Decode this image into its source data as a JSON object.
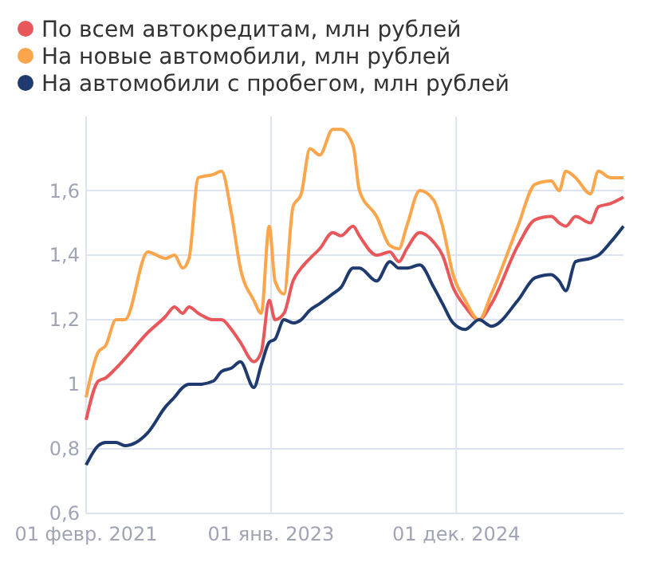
{
  "chart_data": {
    "type": "line",
    "legend": "top left",
    "grid": true,
    "marker": "none",
    "line_style": "solid",
    "x": [
      "2021-02-01",
      "2021-03-19",
      "2021-04-16",
      "2021-05-25",
      "2021-06-28",
      "2021-09-22",
      "2021-11-28",
      "2022-01-01",
      "2022-02-01",
      "2022-02-25",
      "2022-04-01",
      "2022-05-28",
      "2022-06-28",
      "2022-08-04",
      "2022-09-07",
      "2022-10-28",
      "2022-11-25",
      "2022-12-25",
      "2023-01-16",
      "2023-02-19",
      "2023-03-25",
      "2023-04-25",
      "2023-05-28",
      "2023-07-04",
      "2023-08-22",
      "2023-09-22",
      "2023-11-07",
      "2023-12-01",
      "2024-02-04",
      "2024-03-25",
      "2024-04-28",
      "2024-05-28",
      "2024-07-16",
      "2024-09-07",
      "2024-10-10",
      "2024-11-19",
      "2025-01-04",
      "2025-02-25",
      "2025-04-13",
      "2025-07-22",
      "2025-09-25",
      "2025-11-25",
      "2025-12-25",
      "2026-01-19",
      "2026-02-25",
      "2026-04-22",
      "2026-05-22",
      "2026-07-07",
      "2026-08-25"
    ],
    "xlim": [
      "2021-02-01",
      "2026-08-25"
    ],
    "xticks": [
      {
        "value": "2021-02-01",
        "label": "01 февр. 2021"
      },
      {
        "value": "2023-01-01",
        "label": "01 янв. 2023"
      },
      {
        "value": "2024-12-01",
        "label": "01 дек. 2024"
      }
    ],
    "ylim": [
      0.6,
      1.83
    ],
    "yticks": [
      {
        "value": 0.6,
        "label": "0,6"
      },
      {
        "value": 0.8,
        "label": "0,8"
      },
      {
        "value": 1,
        "label": "1"
      },
      {
        "value": 1.2,
        "label": "1,2"
      },
      {
        "value": 1.4,
        "label": "1,4"
      },
      {
        "value": 1.6,
        "label": "1,6"
      }
    ],
    "series": [
      {
        "name": "По всем автокредитам, млн рублей",
        "color": "#e8575a",
        "values": [
          0.89,
          1.01,
          1.02,
          1.05,
          1.08,
          1.16,
          1.21,
          1.24,
          1.22,
          1.24,
          1.22,
          1.2,
          1.2,
          1.17,
          1.13,
          1.07,
          1.1,
          1.26,
          1.2,
          1.22,
          1.32,
          1.36,
          1.39,
          1.42,
          1.47,
          1.46,
          1.49,
          1.46,
          1.4,
          1.41,
          1.38,
          1.42,
          1.47,
          1.44,
          1.4,
          1.3,
          1.24,
          1.2,
          1.25,
          1.43,
          1.51,
          1.52,
          1.5,
          1.49,
          1.52,
          1.5,
          1.55,
          1.56,
          1.58
        ]
      },
      {
        "name": "На новые автомобили, млн рублей",
        "color": "#fba64c",
        "values": [
          0.96,
          1.1,
          1.12,
          1.2,
          1.2,
          1.41,
          1.39,
          1.4,
          1.36,
          1.39,
          1.64,
          1.65,
          1.66,
          1.53,
          1.36,
          1.26,
          1.22,
          1.49,
          1.32,
          1.28,
          1.55,
          1.59,
          1.73,
          1.71,
          1.79,
          1.79,
          1.74,
          1.6,
          1.52,
          1.43,
          1.42,
          1.49,
          1.6,
          1.57,
          1.49,
          1.34,
          1.26,
          1.2,
          1.28,
          1.49,
          1.62,
          1.63,
          1.6,
          1.66,
          1.64,
          1.59,
          1.66,
          1.64,
          1.64
        ]
      },
      {
        "name": "На автомобили с пробегом, млн рублей",
        "color": "#1f3a6e",
        "values": [
          0.75,
          0.81,
          0.82,
          0.82,
          0.81,
          0.85,
          0.93,
          0.96,
          0.99,
          1.0,
          1.0,
          1.01,
          1.04,
          1.05,
          1.07,
          0.99,
          1.06,
          1.13,
          1.14,
          1.2,
          1.19,
          1.2,
          1.23,
          1.25,
          1.28,
          1.3,
          1.36,
          1.36,
          1.32,
          1.38,
          1.36,
          1.36,
          1.37,
          1.3,
          1.25,
          1.19,
          1.17,
          1.2,
          1.18,
          1.26,
          1.33,
          1.34,
          1.32,
          1.29,
          1.38,
          1.39,
          1.4,
          1.44,
          1.49
        ]
      }
    ]
  }
}
